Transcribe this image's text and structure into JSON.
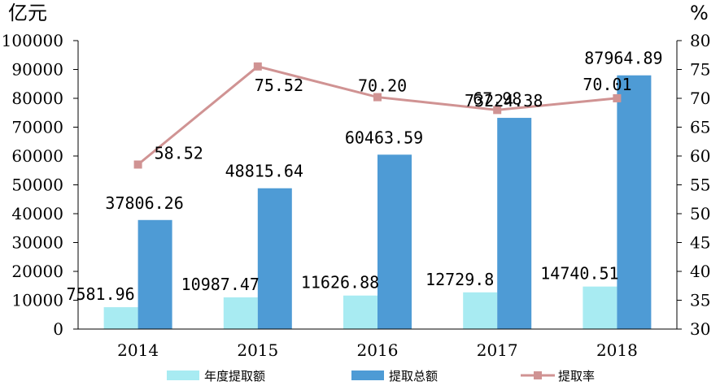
{
  "chart_data": {
    "type": "bar",
    "categories": [
      "2014",
      "2015",
      "2016",
      "2017",
      "2018"
    ],
    "y_left_unit": "亿元",
    "y_right_unit": "%",
    "ylim_left": [
      0,
      100000
    ],
    "ylim_right": [
      30,
      80
    ],
    "y_left_ticks": [
      0,
      10000,
      20000,
      30000,
      40000,
      50000,
      60000,
      70000,
      80000,
      90000,
      100000
    ],
    "y_right_ticks": [
      30,
      35,
      40,
      45,
      50,
      55,
      60,
      65,
      70,
      75,
      80
    ],
    "grid": false,
    "legend_position": "bottom",
    "series": [
      {
        "name": "年度提取额",
        "kind": "bar",
        "axis": "left",
        "color": "#a8ebf2",
        "values": [
          7581.96,
          10987.47,
          11626.88,
          12729.8,
          14740.51
        ],
        "labels": [
          "7581.96",
          "10987.47",
          "11626.88",
          "12729.8",
          "14740.51"
        ]
      },
      {
        "name": "提取总额",
        "kind": "bar",
        "axis": "left",
        "color": "#4e9bd5",
        "values": [
          37806.26,
          48815.64,
          60463.59,
          73224.38,
          87964.89
        ],
        "labels": [
          "37806.26",
          "48815.64",
          "60463.59",
          "73224.38",
          "87964.89"
        ]
      },
      {
        "name": "提取率",
        "kind": "line",
        "axis": "right",
        "color": "#d09393",
        "values": [
          58.52,
          75.52,
          70.2,
          67.98,
          70.01
        ],
        "labels": [
          "58.52",
          "75.52",
          "70.20",
          "67.98",
          "70.01"
        ]
      }
    ]
  }
}
